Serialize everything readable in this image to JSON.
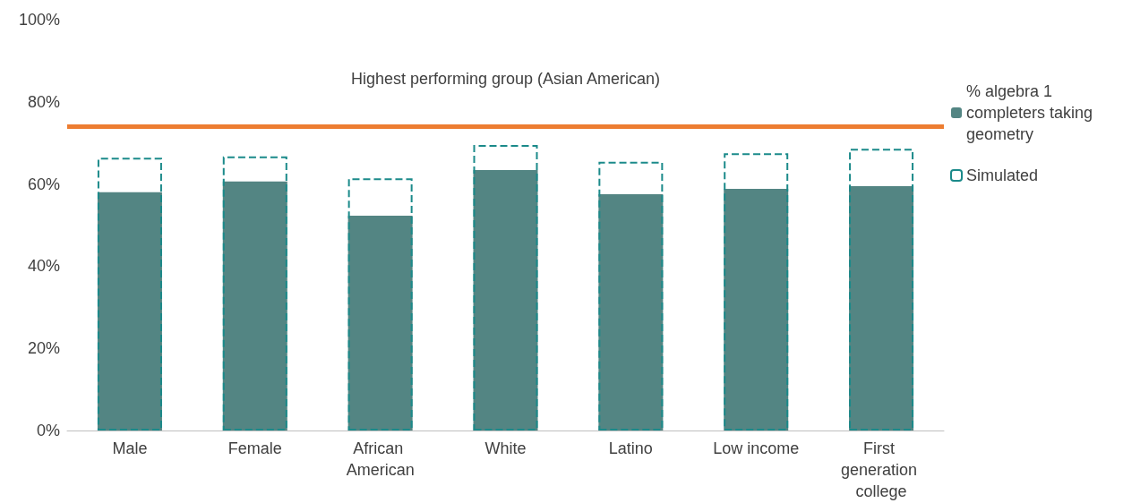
{
  "chart_data": {
    "type": "bar",
    "categories": [
      "Male",
      "Female",
      "African American",
      "White",
      "Latino",
      "Low income",
      "First generation college"
    ],
    "series": [
      {
        "name": "% algebra 1 completers taking geometry",
        "color": "#538583",
        "values": [
          58.0,
          60.6,
          52.3,
          63.4,
          57.5,
          58.8,
          59.5
        ]
      },
      {
        "name": "Simulated",
        "color": "#1b8a8a",
        "line_style": "dashed",
        "values": [
          66.4,
          66.7,
          61.4,
          69.5,
          65.4,
          67.5,
          68.6
        ]
      }
    ],
    "ylim": [
      0,
      100
    ],
    "yticks": [
      {
        "value": 0,
        "label": "0%"
      },
      {
        "value": 20,
        "label": "20%"
      },
      {
        "value": 40,
        "label": "40%"
      },
      {
        "value": 60,
        "label": "60%"
      },
      {
        "value": 80,
        "label": "80%"
      },
      {
        "value": 100,
        "label": "100%"
      }
    ],
    "ref_lines": [
      {
        "axis": "y",
        "value": 74,
        "label": "Highest performing group (Asian American)",
        "color": "#ed7d31"
      }
    ],
    "grid": false,
    "legend": "right"
  }
}
